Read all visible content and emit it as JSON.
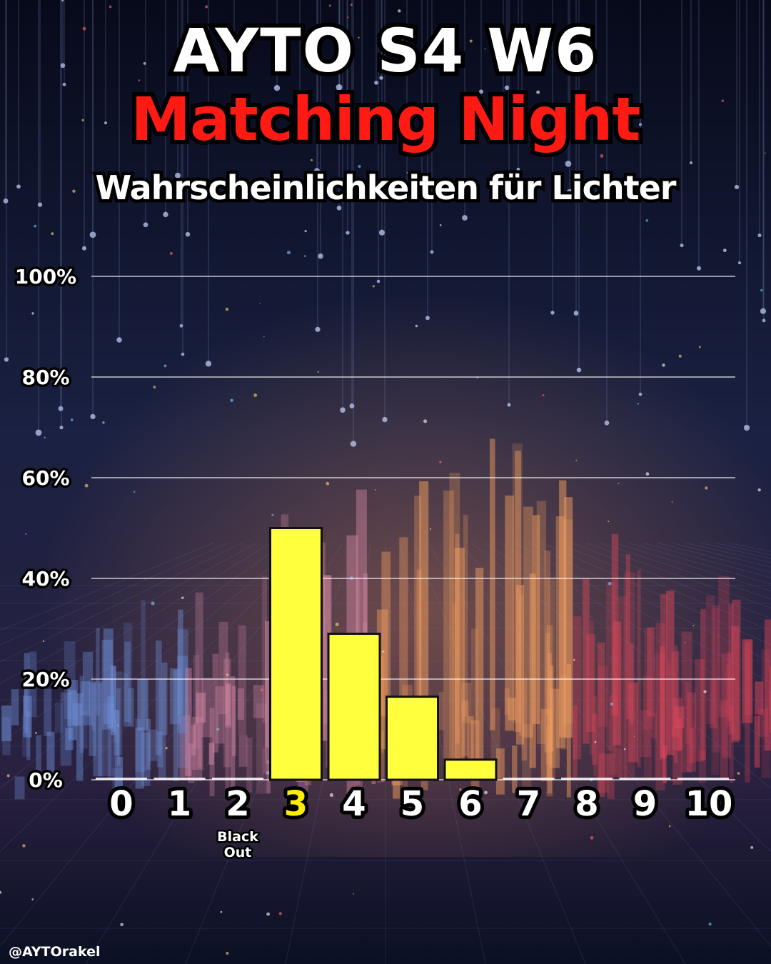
{
  "header": {
    "title_line1": "AYTO S4  W6",
    "title_line2": "Matching Night",
    "subtitle": "Wahrscheinlichkeiten für Lichter"
  },
  "footer": {
    "handle": "@AYTOrakel"
  },
  "colors": {
    "bar": "#ffff3d",
    "highlight_tick": "#ffee00",
    "title_red": "#ff1a14",
    "grid": "#ffffff"
  },
  "chart_data": {
    "type": "bar",
    "categories": [
      "0",
      "1",
      "2",
      "3",
      "4",
      "5",
      "6",
      "7",
      "8",
      "9",
      "10"
    ],
    "values": [
      0,
      0,
      0,
      50,
      29,
      16.5,
      4,
      0,
      0,
      0,
      0
    ],
    "highlight_category": "3",
    "category_annotations": [
      {
        "category": "2",
        "text": "Black\nOut"
      }
    ],
    "yticks": [
      "0%",
      "20%",
      "40%",
      "60%",
      "80%",
      "100%"
    ],
    "ylim": [
      0,
      100
    ],
    "grid": true,
    "unit": "%"
  }
}
